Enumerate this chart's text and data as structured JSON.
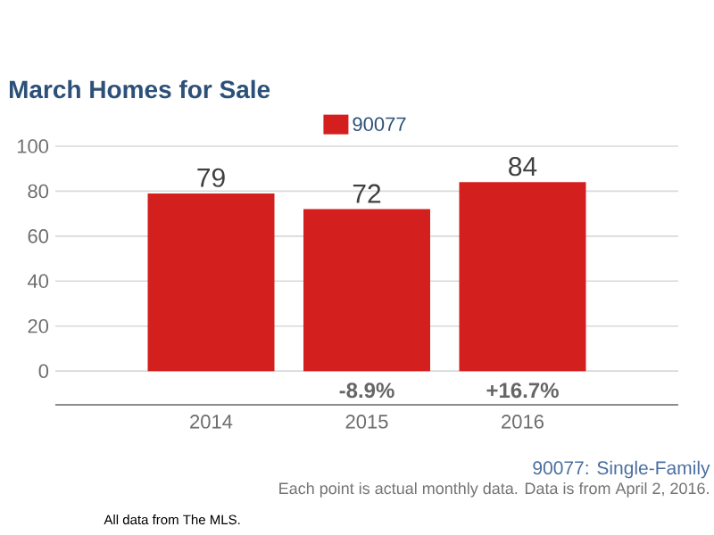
{
  "chart_data": {
    "type": "bar",
    "title": "March Homes for Sale",
    "categories": [
      "2014",
      "2015",
      "2016"
    ],
    "series": [
      {
        "name": "90077",
        "color": "#d41f1f",
        "values": [
          79,
          72,
          84
        ]
      }
    ],
    "ylim": [
      -15,
      100
    ],
    "yticks": [
      0,
      20,
      40,
      60,
      80,
      100
    ],
    "grid": "y",
    "legend": "top",
    "data_labels": true,
    "annotations": [
      "-8.9%",
      "+16.7%",
      "90077: Single-Family",
      "Each point is actual monthly data. Data is from April 2, 2016.",
      "All data from The MLS."
    ]
  }
}
